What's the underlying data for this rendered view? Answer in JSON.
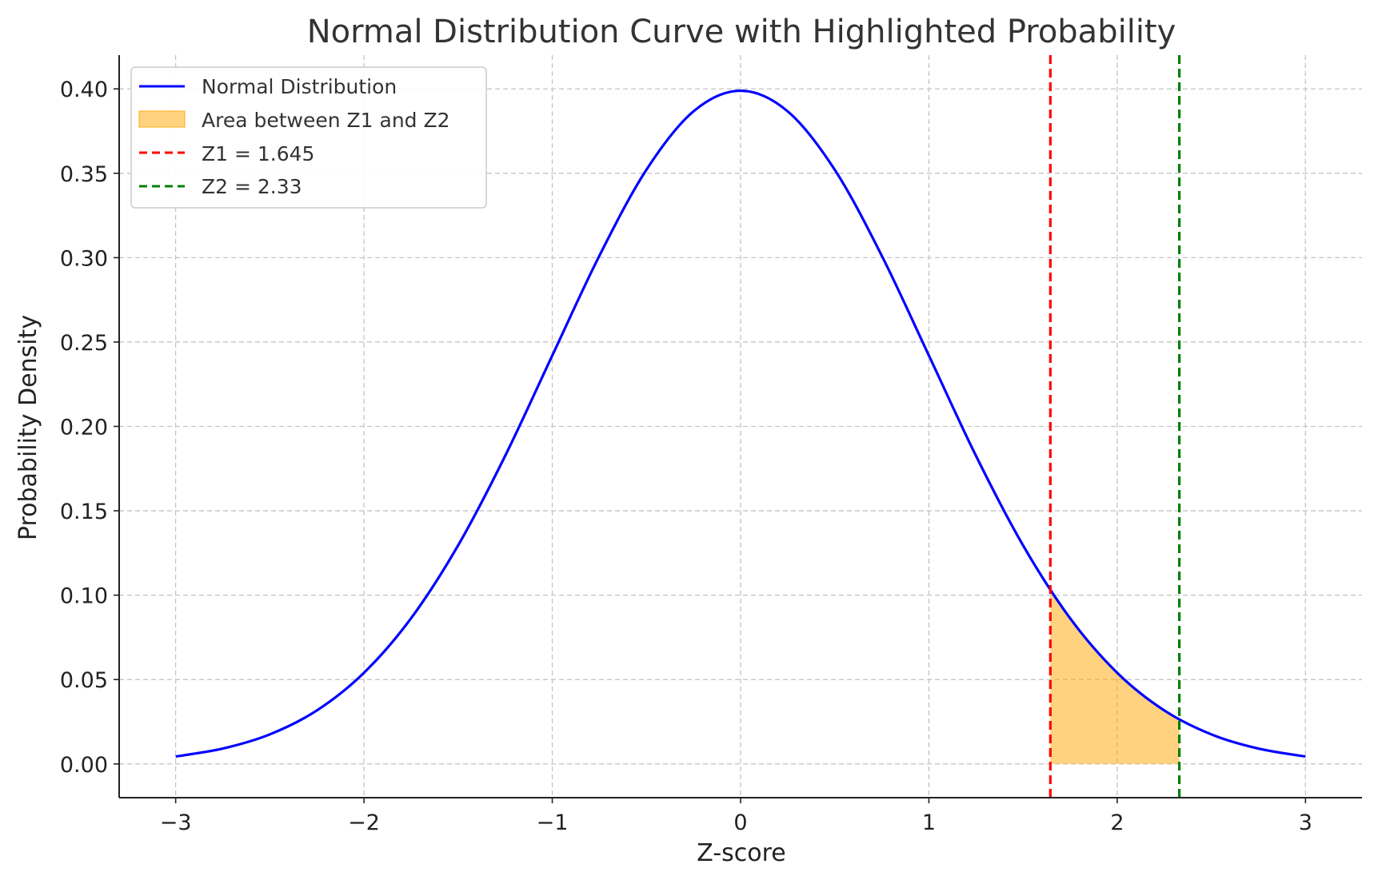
{
  "chart_data": {
    "type": "line",
    "title": "Normal Distribution Curve with Highlighted Probability",
    "xlabel": "Z-score",
    "ylabel": "Probability Density",
    "xlim": [
      -3.3,
      3.3
    ],
    "ylim": [
      -0.02,
      0.42
    ],
    "x_ticks": [
      -3,
      -2,
      -1,
      0,
      1,
      2,
      3
    ],
    "x_tick_labels": [
      "−3",
      "−2",
      "−1",
      "0",
      "1",
      "2",
      "3"
    ],
    "y_ticks": [
      0.0,
      0.05,
      0.1,
      0.15,
      0.2,
      0.25,
      0.3,
      0.35,
      0.4
    ],
    "y_tick_labels": [
      "0.00",
      "0.05",
      "0.10",
      "0.15",
      "0.20",
      "0.25",
      "0.30",
      "0.35",
      "0.40"
    ],
    "grid": true,
    "legend_position": "top-left",
    "series": [
      {
        "name": "Normal Distribution",
        "kind": "line",
        "color": "#0000ff",
        "x": [
          -3.0,
          -2.75,
          -2.5,
          -2.25,
          -2.0,
          -1.75,
          -1.5,
          -1.25,
          -1.0,
          -0.75,
          -0.5,
          -0.25,
          0.0,
          0.25,
          0.5,
          0.75,
          1.0,
          1.25,
          1.5,
          1.75,
          2.0,
          2.25,
          2.5,
          2.75,
          3.0
        ],
        "y": [
          0.0044,
          0.0091,
          0.0175,
          0.0317,
          0.054,
          0.0863,
          0.1295,
          0.1826,
          0.242,
          0.3011,
          0.3521,
          0.3867,
          0.3989,
          0.3867,
          0.3521,
          0.3011,
          0.242,
          0.1826,
          0.1295,
          0.0863,
          0.054,
          0.0317,
          0.0175,
          0.0091,
          0.0044
        ]
      },
      {
        "name": "Area between Z1 and Z2",
        "kind": "area",
        "color": "#ffa500",
        "x": [
          1.645,
          1.75,
          1.9,
          2.0,
          2.1,
          2.2,
          2.33
        ],
        "y": [
          0.1031,
          0.0863,
          0.0656,
          0.054,
          0.044,
          0.0355,
          0.0264
        ]
      },
      {
        "name": "Z1 = 1.645",
        "kind": "vline",
        "color": "#ff0000",
        "x": 1.645
      },
      {
        "name": "Z2 = 2.33",
        "kind": "vline",
        "color": "#008000",
        "x": 2.33
      }
    ]
  }
}
